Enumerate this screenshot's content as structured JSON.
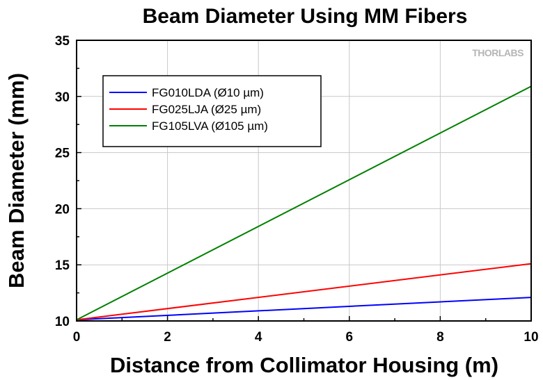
{
  "chart_data": {
    "type": "line",
    "title": "Beam Diameter Using MM Fibers",
    "xlabel": "Distance from Collimator Housing (m)",
    "ylabel": "Beam Diameter (mm)",
    "xlim": [
      0,
      10
    ],
    "ylim": [
      10,
      35
    ],
    "xticks": [
      0,
      2,
      4,
      6,
      8,
      10
    ],
    "yticks": [
      10,
      15,
      20,
      25,
      30,
      35
    ],
    "grid": true,
    "legend_position": "top-left",
    "series": [
      {
        "name": "FG010LDA (Ø10 µm)",
        "color": "#0000ff",
        "x": [
          0,
          10
        ],
        "y": [
          10.1,
          12.1
        ]
      },
      {
        "name": "FG025LJA (Ø25 µm)",
        "color": "#ff0000",
        "x": [
          0,
          10
        ],
        "y": [
          10.1,
          15.1
        ]
      },
      {
        "name": "FG105LVA (Ø105 µm)",
        "color": "#008000",
        "x": [
          0,
          10
        ],
        "y": [
          10.1,
          30.9
        ]
      }
    ]
  },
  "logo": {
    "text": "THORLABS"
  }
}
